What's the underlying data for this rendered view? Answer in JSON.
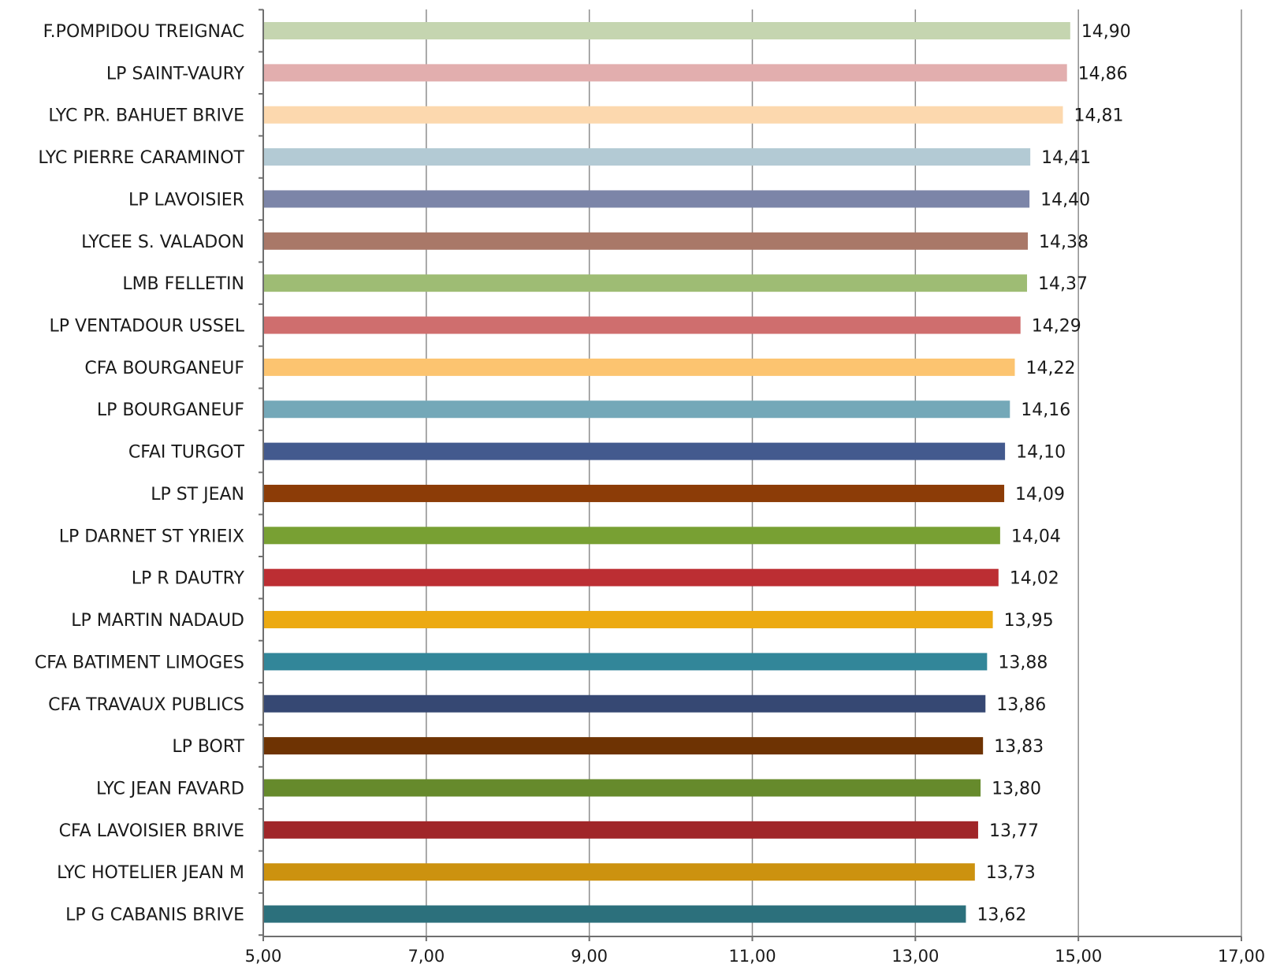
{
  "chart_data": {
    "type": "bar",
    "orientation": "horizontal",
    "title": "",
    "xlabel": "",
    "ylabel": "",
    "xlim": [
      5.0,
      17.0
    ],
    "x_ticks": [
      "5,00",
      "7,00",
      "9,00",
      "11,00",
      "13,00",
      "15,00",
      "17,00"
    ],
    "x_tick_values": [
      5,
      7,
      9,
      11,
      13,
      15,
      17
    ],
    "grid": "vertical",
    "legend": "none",
    "categories": [
      "F.POMPIDOU TREIGNAC",
      "LP SAINT-VAURY",
      "LYC PR. BAHUET BRIVE",
      "LYC PIERRE CARAMINOT",
      "LP LAVOISIER",
      "LYCEE S. VALADON",
      "LMB FELLETIN",
      "LP VENTADOUR USSEL",
      "CFA BOURGANEUF",
      "LP BOURGANEUF",
      "CFAI TURGOT",
      "LP   ST JEAN",
      "LP DARNET ST YRIEIX",
      "LP R DAUTRY",
      "LP   MARTIN NADAUD",
      "CFA BATIMENT LIMOGES",
      "CFA TRAVAUX PUBLICS",
      "LP BORT",
      "LYC  JEAN FAVARD",
      "CFA LAVOISIER BRIVE",
      "LYC  HOTELIER JEAN M",
      "LP G CABANIS BRIVE"
    ],
    "values": [
      14.9,
      14.86,
      14.81,
      14.41,
      14.4,
      14.38,
      14.37,
      14.29,
      14.22,
      14.16,
      14.1,
      14.09,
      14.04,
      14.02,
      13.95,
      13.88,
      13.86,
      13.83,
      13.8,
      13.77,
      13.73,
      13.62
    ],
    "value_labels": [
      "14,90",
      "14,86",
      "14,81",
      "14,41",
      "14,40",
      "14,38",
      "14,37",
      "14,29",
      "14,22",
      "14,16",
      "14,10",
      "14,09",
      "14,04",
      "14,02",
      "13,95",
      "13,88",
      "13,86",
      "13,83",
      "13,80",
      "13,77",
      "13,73",
      "13,62"
    ],
    "colors": [
      "#c5d5b0",
      "#e2aeae",
      "#fcd8ae",
      "#b3cad4",
      "#7c85a8",
      "#a97868",
      "#9ebc74",
      "#cf6e6e",
      "#fcc470",
      "#74a8b8",
      "#435a8e",
      "#8c3c07",
      "#78a033",
      "#bc2e33",
      "#ecaa12",
      "#328699",
      "#364873",
      "#6e3303",
      "#668a2c",
      "#a02629",
      "#cc920f",
      "#2c707c"
    ],
    "gridline_color": "#8c8c8c",
    "axis_color": "#6f6f6f"
  }
}
